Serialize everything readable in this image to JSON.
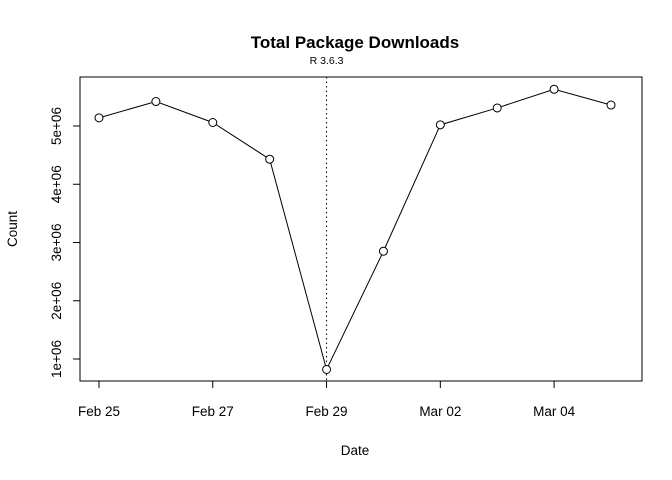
{
  "chart_data": {
    "type": "line",
    "title": "Total Package Downloads",
    "xlabel": "Date",
    "ylabel": "Count",
    "x": [
      "2020-02-25",
      "2020-02-26",
      "2020-02-27",
      "2020-02-28",
      "2020-02-29",
      "2020-03-01",
      "2020-03-02",
      "2020-03-03",
      "2020-03-04",
      "2020-03-05"
    ],
    "series": [
      {
        "values": [
          5140000,
          5420000,
          5060000,
          4430000,
          820000,
          2850000,
          5020000,
          5310000,
          5630000,
          5360000
        ]
      }
    ],
    "x_ticks": [
      {
        "x": "2020-02-25",
        "label": "Feb 25"
      },
      {
        "x": "2020-02-27",
        "label": "Feb 27"
      },
      {
        "x": "2020-02-29",
        "label": "Feb 29"
      },
      {
        "x": "2020-03-02",
        "label": "Mar 02"
      },
      {
        "x": "2020-03-04",
        "label": "Mar 04"
      }
    ],
    "y_ticks": [
      {
        "value": 1000000,
        "label": "1e+06"
      },
      {
        "value": 2000000,
        "label": "2e+06"
      },
      {
        "value": 3000000,
        "label": "3e+06"
      },
      {
        "value": 4000000,
        "label": "4e+06"
      },
      {
        "value": 5000000,
        "label": "5e+06"
      }
    ],
    "xlim": [
      "2020-02-24",
      "2020-03-05"
    ],
    "ylim": [
      700000,
      5900000
    ],
    "annotations": [
      {
        "type": "vline",
        "x": "2020-02-29",
        "label": "R 3.6.3",
        "style": "dotted"
      }
    ],
    "marker": "open-circle",
    "grid": false,
    "legend": "none",
    "colors": {
      "line": "#000000",
      "marker": "#000000",
      "frame": "#000000"
    }
  }
}
